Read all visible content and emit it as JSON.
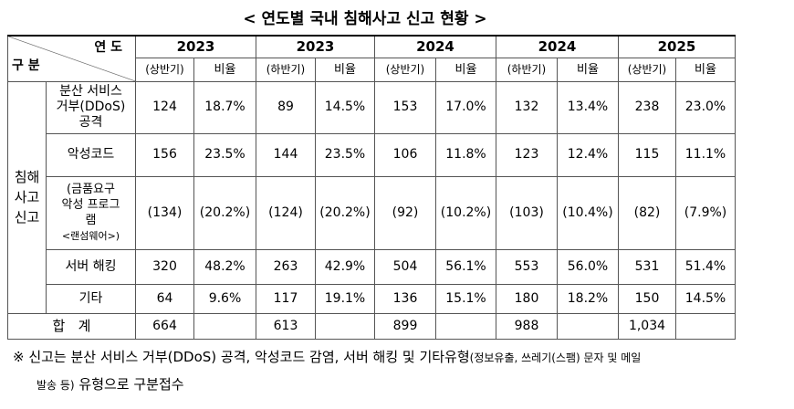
{
  "title": "< 연도별 국내 침해사고 신고 현황 >",
  "header": {
    "corner_top": "연 도",
    "corner_bottom": "구 분",
    "years": [
      {
        "year": "2023",
        "half": "(상반기)",
        "ratio": "비율"
      },
      {
        "year": "2023",
        "half": "(하반기)",
        "ratio": "비율"
      },
      {
        "year": "2024",
        "half": "(상반기)",
        "ratio": "비율"
      },
      {
        "year": "2024",
        "half": "(하반기)",
        "ratio": "비율"
      },
      {
        "year": "2025",
        "half": "(상반기)",
        "ratio": "비율"
      }
    ]
  },
  "group": [
    "침해",
    "사고",
    "신고"
  ],
  "rows": [
    {
      "label": [
        "분산 서비스",
        "거부(DDoS)",
        "공격"
      ],
      "cells": [
        "124",
        "18.7%",
        "89",
        "14.5%",
        "153",
        "17.0%",
        "132",
        "13.4%",
        "238",
        "23.0%"
      ]
    },
    {
      "label": [
        "악성코드"
      ],
      "cells": [
        "156",
        "23.5%",
        "144",
        "23.5%",
        "106",
        "11.8%",
        "123",
        "12.4%",
        "115",
        "11.1%"
      ]
    },
    {
      "label": [
        "(금품요구",
        "악성 프로그",
        "램",
        "<랜섬웨어>)"
      ],
      "cells": [
        "(134)",
        "(20.2%)",
        "(124)",
        "(20.2%)",
        "(92)",
        "(10.2%)",
        "(103)",
        "(10.4%)",
        "(82)",
        "(7.9%)"
      ]
    },
    {
      "label": [
        "서버 해킹"
      ],
      "cells": [
        "320",
        "48.2%",
        "263",
        "42.9%",
        "504",
        "56.1%",
        "553",
        "56.0%",
        "531",
        "51.4%"
      ]
    },
    {
      "label": [
        "기타"
      ],
      "cells": [
        "64",
        "9.6%",
        "117",
        "19.1%",
        "136",
        "15.1%",
        "180",
        "18.2%",
        "150",
        "14.5%"
      ]
    }
  ],
  "total": {
    "label": "합   계",
    "values": [
      "664",
      "613",
      "899",
      "988",
      "1,034"
    ]
  },
  "footnote": {
    "line1": "※ 신고는 분산 서비스 거부(DDoS) 공격, 악성코드 감염, 서버 해킹 및 기타유형",
    "line1_small": "(정보유출, 쓰레기(스팸) 문자 및 메일",
    "line2_small": "발송 등)",
    "line2": " 유형으로 구분접수"
  }
}
